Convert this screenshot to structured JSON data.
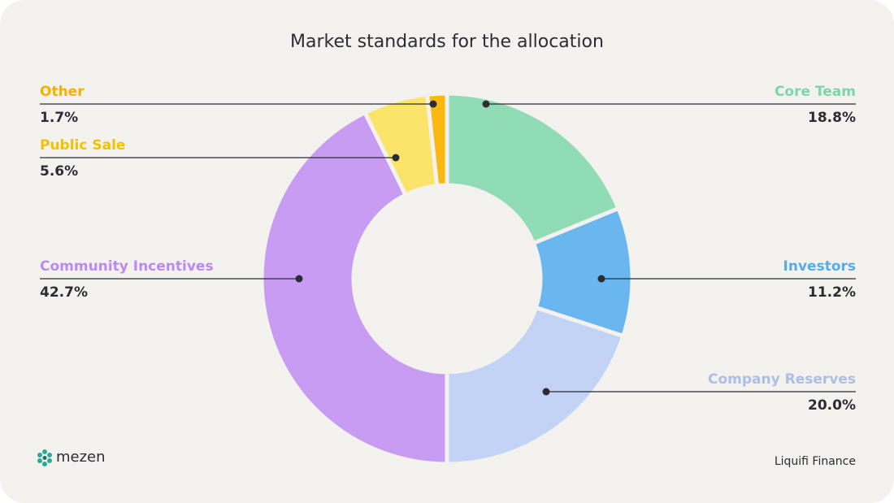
{
  "chart_data": {
    "type": "donut",
    "title": "Market standards for the allocation",
    "categories": [
      "Core Team",
      "Investors",
      "Company Reserves",
      "Community Incentives",
      "Public Sale",
      "Other"
    ],
    "values": [
      18.8,
      11.2,
      20.0,
      42.7,
      5.6,
      1.7
    ],
    "value_labels": [
      "18.8%",
      "11.2%",
      "20.0%",
      "42.7%",
      "5.6%",
      "1.7%"
    ],
    "colors": [
      "#8fdcb6",
      "#6ab7ef",
      "#c2d3f5",
      "#c89cf3",
      "#fbe46a",
      "#fbb90f"
    ],
    "label_colors": [
      "#7fd4a9",
      "#56abe8",
      "#a9bfe8",
      "#bb8aef",
      "#f2c200",
      "#f5b000"
    ],
    "logo_text": "mezen",
    "source": "Liquifi Finance"
  }
}
